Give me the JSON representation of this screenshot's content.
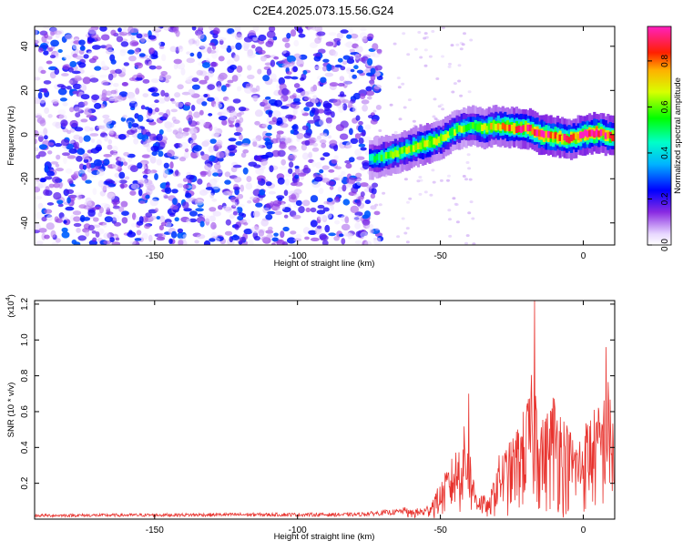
{
  "chart_data": [
    {
      "type": "heatmap",
      "title": "C2E4.2025.073.15.56.G24",
      "xlabel": "Height of straight line (km)",
      "ylabel": "Frequency (Hz)",
      "xlim": [
        -192,
        11
      ],
      "ylim": [
        -50,
        49
      ],
      "xticks": [
        -150,
        -100,
        -50,
        0
      ],
      "yticks": [
        -40,
        -20,
        0,
        20,
        40
      ],
      "colorbar": {
        "label": "Normalized spectral amplitude",
        "range": [
          0,
          0.95
        ],
        "ticks": [
          0.0,
          0.2,
          0.4,
          0.6,
          0.8
        ],
        "tick_labels": [
          "0.0",
          "0.2",
          "0.4",
          "0.6",
          "0.8"
        ],
        "colormap": "rainbow (white-purple-blue-cyan-green-yellow-red-magenta)"
      },
      "noise_region": {
        "x_range": [
          -192,
          -73
        ],
        "amplitude": "0.0-0.3"
      },
      "signal_ridge": [
        {
          "x": -75,
          "freq": -11,
          "amp": 0.45
        },
        {
          "x": -70,
          "freq": -10,
          "amp": 0.55
        },
        {
          "x": -65,
          "freq": -8,
          "amp": 0.6
        },
        {
          "x": -60,
          "freq": -6,
          "amp": 0.65
        },
        {
          "x": -55,
          "freq": -4,
          "amp": 0.7
        },
        {
          "x": -50,
          "freq": -2,
          "amp": 0.6
        },
        {
          "x": -45,
          "freq": 2,
          "amp": 0.6
        },
        {
          "x": -40,
          "freq": 4,
          "amp": 0.55
        },
        {
          "x": -35,
          "freq": 3,
          "amp": 0.65
        },
        {
          "x": -30,
          "freq": 4,
          "amp": 0.75
        },
        {
          "x": -25,
          "freq": 3,
          "amp": 0.8
        },
        {
          "x": -20,
          "freq": 3,
          "amp": 0.85
        },
        {
          "x": -15,
          "freq": 0,
          "amp": 0.9
        },
        {
          "x": -10,
          "freq": -1,
          "amp": 0.85
        },
        {
          "x": -5,
          "freq": -2,
          "amp": 0.8
        },
        {
          "x": 0,
          "freq": 0,
          "amp": 0.9
        },
        {
          "x": 5,
          "freq": 1,
          "amp": 0.95
        },
        {
          "x": 10,
          "freq": -1,
          "amp": 0.8
        }
      ]
    },
    {
      "type": "line",
      "xlabel": "Height of straight line (km)",
      "ylabel": "SNR (10 * v/v)",
      "y_multiplier": "(x10",
      "y_multiplier_exp": "4",
      "y_multiplier_close": ")",
      "xlim": [
        -192,
        11
      ],
      "ylim": [
        0,
        1.22
      ],
      "xticks": [
        -150,
        -100,
        -50,
        0
      ],
      "yticks": [
        0.2,
        0.4,
        0.6,
        0.8,
        1.0,
        1.2
      ],
      "ytick_labels": [
        "0.2",
        "0.4",
        "0.6",
        "0.8",
        "1.0",
        "1.2"
      ],
      "color": "#e8332e",
      "envelope": [
        {
          "x": -192,
          "y": 0.02
        },
        {
          "x": -120,
          "y": 0.025
        },
        {
          "x": -80,
          "y": 0.025
        },
        {
          "x": -65,
          "y": 0.04
        },
        {
          "x": -55,
          "y": 0.07
        },
        {
          "x": -50,
          "y": 0.2
        },
        {
          "x": -45,
          "y": 0.38
        },
        {
          "x": -41,
          "y": 0.55
        },
        {
          "x": -38,
          "y": 0.2
        },
        {
          "x": -33,
          "y": 0.1
        },
        {
          "x": -30,
          "y": 0.35
        },
        {
          "x": -25,
          "y": 0.45
        },
        {
          "x": -20,
          "y": 0.65
        },
        {
          "x": -17,
          "y": 0.9
        },
        {
          "x": -14,
          "y": 0.55
        },
        {
          "x": -10,
          "y": 0.75
        },
        {
          "x": -6,
          "y": 0.55
        },
        {
          "x": -2,
          "y": 0.45
        },
        {
          "x": 2,
          "y": 0.6
        },
        {
          "x": 6,
          "y": 0.65
        },
        {
          "x": 9,
          "y": 0.8
        },
        {
          "x": 11,
          "y": 0.5
        }
      ],
      "peak": {
        "x": -17,
        "y": 1.22
      },
      "secondary_peaks": [
        {
          "x": -40,
          "y": 0.7
        },
        {
          "x": 8,
          "y": 0.96
        }
      ]
    }
  ]
}
